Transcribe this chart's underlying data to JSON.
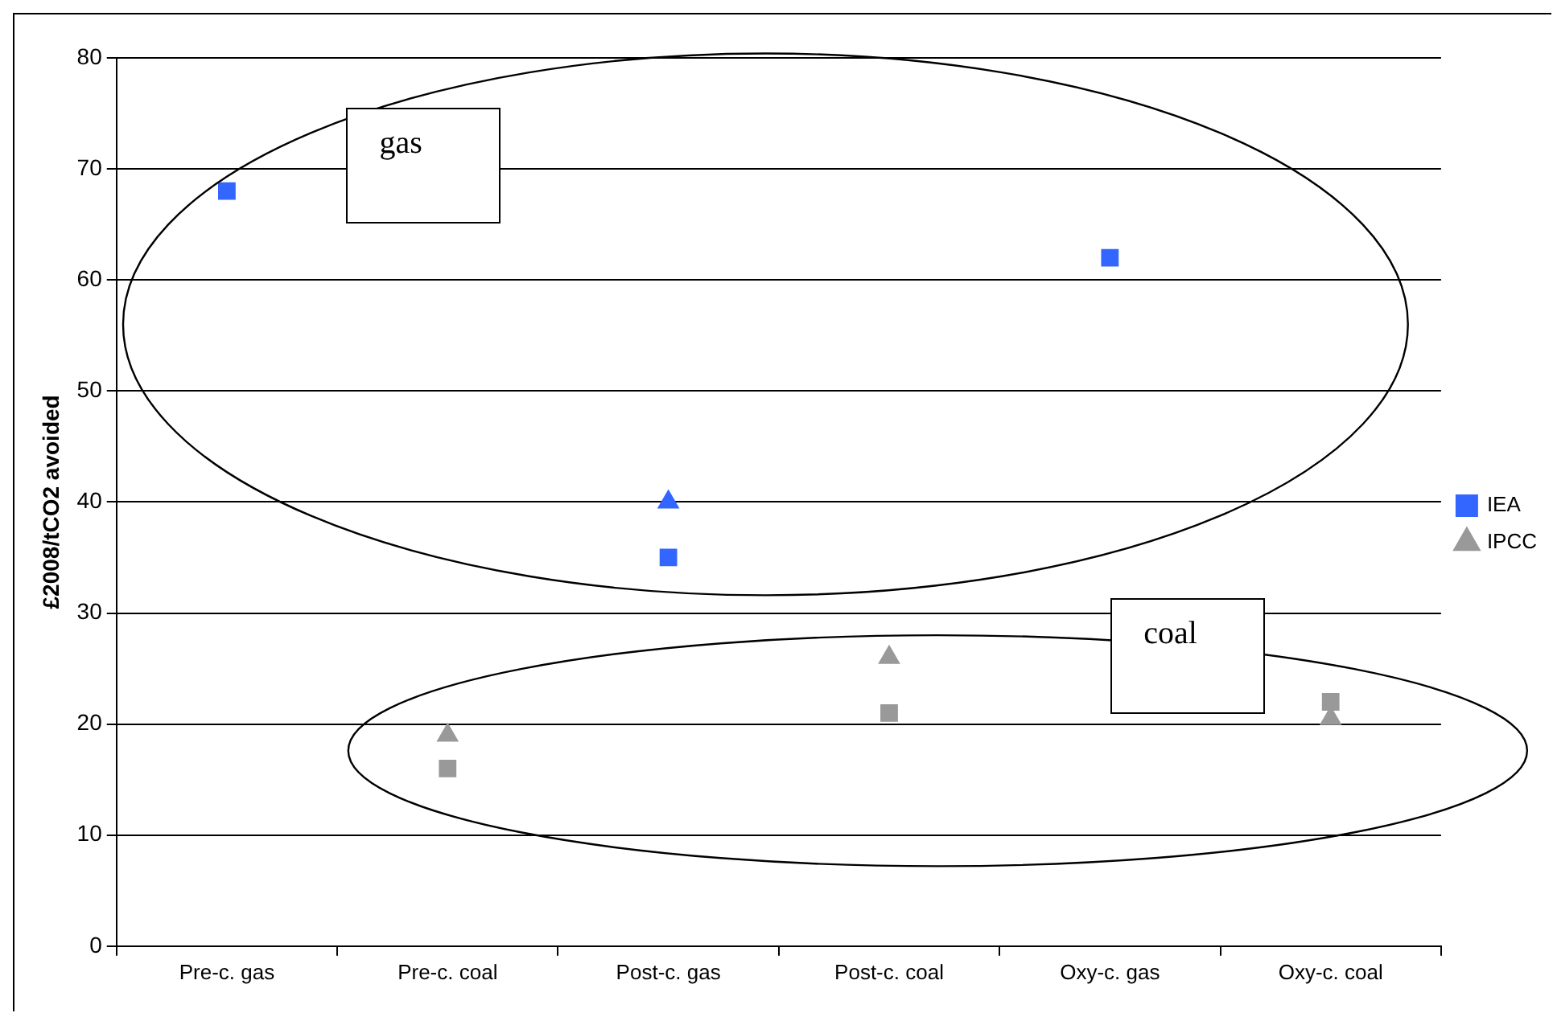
{
  "chart_data": {
    "type": "scatter",
    "ylabel": "£2008/tCO2 avoided",
    "categories": [
      "Pre-c. gas",
      "Pre-c. coal",
      "Post-c. gas",
      "Post-c. coal",
      "Oxy-c. gas",
      "Oxy-c. coal"
    ],
    "series": [
      {
        "name": "IEA",
        "color": "#3366ff",
        "marker": "square",
        "colors": [
          "#3366ff",
          "#999999",
          "#3366ff",
          "#999999",
          "#3366ff",
          "#999999"
        ],
        "values": [
          68,
          16,
          35,
          21,
          62,
          22
        ]
      },
      {
        "name": "IPCC",
        "color": "#999999",
        "marker": "triangle",
        "colors": [
          "#3366ff",
          "#999999",
          "#3366ff",
          "#999999",
          "#3366ff",
          "#999999"
        ],
        "values": [
          null,
          19,
          40,
          26,
          null,
          20.5
        ]
      }
    ],
    "ylim": [
      0,
      80
    ],
    "yticks": [
      0,
      10,
      20,
      30,
      40,
      50,
      60,
      70,
      80
    ],
    "grid": "y",
    "legend": "right",
    "annotations": [
      "gas",
      "coal"
    ]
  }
}
